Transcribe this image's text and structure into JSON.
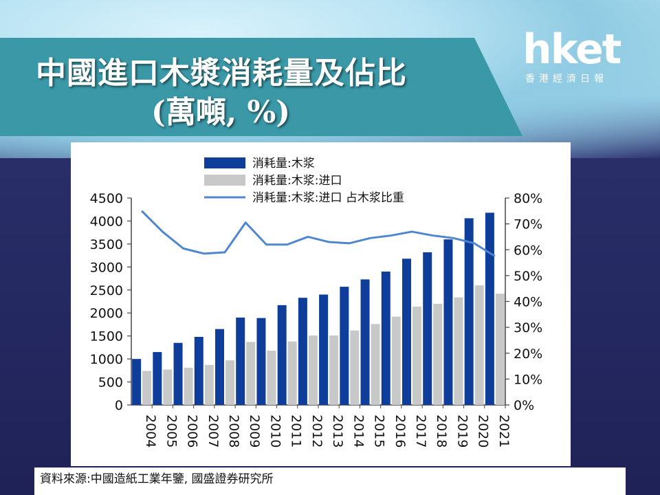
{
  "header": {
    "title_line1": "中國進口木漿消耗量及佔比",
    "title_line2": "(萬噸, %)"
  },
  "logo": {
    "name": "hket",
    "subtitle": "香港經濟日報"
  },
  "source": "資料來源:中國造紙工業年鑒, 國盛證券研究所",
  "colors": {
    "bar_total": "#0e3e9a",
    "bar_import": "#c8c8c8",
    "line_share": "#4f86d0",
    "banner": "#3a98a7"
  },
  "chart_data": {
    "type": "bar",
    "categories": [
      "2004",
      "2005",
      "2006",
      "2007",
      "2008",
      "2009",
      "2010",
      "2011",
      "2012",
      "2013",
      "2014",
      "2015",
      "2016",
      "2017",
      "2018",
      "2019",
      "2020",
      "2021"
    ],
    "series": [
      {
        "name": "消耗量:木浆",
        "type": "bar",
        "axis": "left",
        "values": [
          1000,
          1150,
          1350,
          1480,
          1650,
          1900,
          1890,
          2170,
          2330,
          2400,
          2570,
          2730,
          2900,
          3180,
          3320,
          3600,
          4060,
          4180
        ]
      },
      {
        "name": "消耗量:木浆:进口",
        "type": "bar",
        "axis": "left",
        "values": [
          740,
          770,
          810,
          870,
          970,
          1370,
          1180,
          1380,
          1510,
          1510,
          1620,
          1760,
          1920,
          2140,
          2200,
          2340,
          2600,
          2420
        ]
      },
      {
        "name": "消耗量:木浆:进口 占木浆比重",
        "type": "line",
        "axis": "right",
        "values": [
          75,
          67,
          60.5,
          58.5,
          59,
          70.5,
          62,
          62,
          65,
          63,
          62.5,
          64.5,
          65.5,
          67,
          65.5,
          64.5,
          62.5,
          57.5
        ]
      }
    ],
    "ylim_left": [
      0,
      4500
    ],
    "left_ticks": [
      "0",
      "500",
      "1000",
      "1500",
      "2000",
      "2500",
      "3000",
      "3500",
      "4000",
      "4500"
    ],
    "ylim_right": [
      0,
      80
    ],
    "right_ticks": [
      "0%",
      "10%",
      "20%",
      "30%",
      "40%",
      "50%",
      "60%",
      "70%",
      "80%"
    ],
    "legend_position": "top",
    "grid": false
  }
}
